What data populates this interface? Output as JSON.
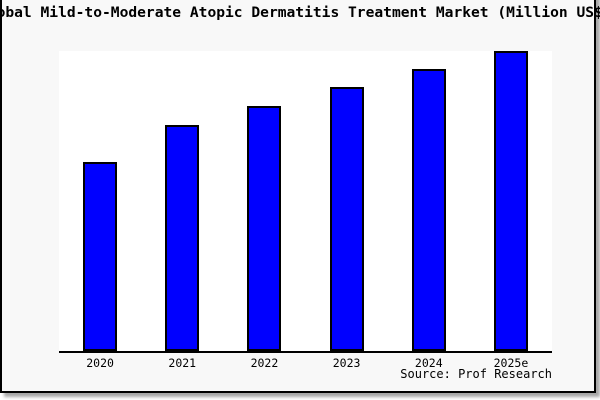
{
  "window": {
    "background_color": "#f8f8f8",
    "plot_background_color": "#ffffff",
    "frame_border_color": "#000000"
  },
  "chart_data": {
    "type": "bar",
    "title": "Global Mild-to-Moderate Atopic Dermatitis Treatment Market (Million US$)",
    "title_visible_portion": "bal Mild-to-Moderate Atopic Dermatitis Treatment Market (Million US",
    "categories": [
      "2020",
      "2021",
      "2022",
      "2023",
      "2024",
      "2025e"
    ],
    "values_pct_of_max": [
      63,
      75.3,
      81.7,
      88,
      94,
      100
    ],
    "ylim": [
      0,
      100
    ],
    "xlabel": "",
    "ylabel": "",
    "grid": false,
    "legend_position": "none",
    "y_axis_ticks_visible": false,
    "bar_color": "#0000ff",
    "bar_edge_color": "#000000",
    "source_note": "Source: Prof Research"
  }
}
